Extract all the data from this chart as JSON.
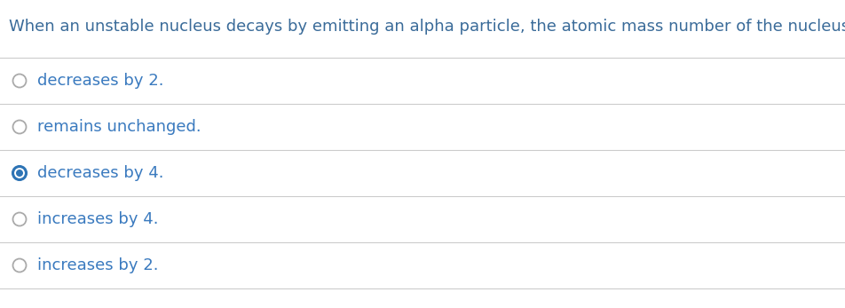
{
  "question": "When an unstable nucleus decays by emitting an alpha particle, the atomic mass number of the nucleus",
  "options": [
    "decreases by 2.",
    "remains unchanged.",
    "decreases by 4.",
    "increases by 4.",
    "increases by 2."
  ],
  "selected_index": 2,
  "bg_color": "#ffffff",
  "text_color": "#3a7abf",
  "question_color": "#3a6b99",
  "line_color": "#cccccc",
  "radio_empty_edge_color": "#aaaaaa",
  "radio_selected_color": "#2e74b5",
  "font_size_question": 13.0,
  "font_size_option": 13.0,
  "fig_width": 9.52,
  "fig_height": 3.47,
  "dpi": 100
}
